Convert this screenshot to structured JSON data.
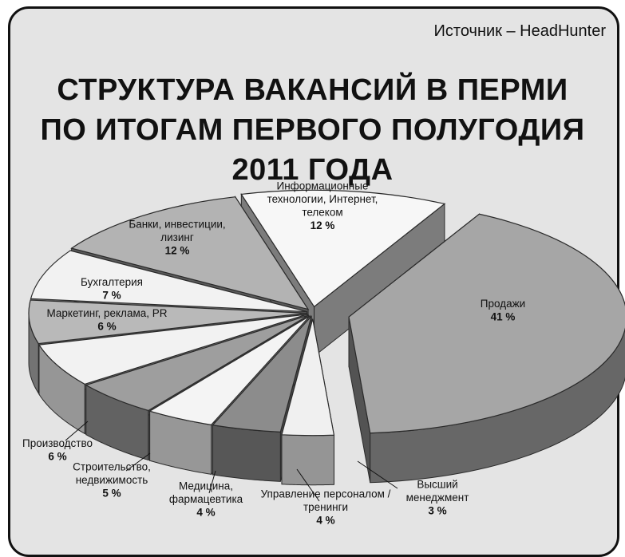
{
  "source": "Источник – HeadHunter",
  "title_lines": [
    "СТРУКТУРА ВАКАНСИЙ В ПЕРМИ",
    "ПО ИТОГАМ ПЕРВОГО ПОЛУГОДИЯ",
    "2011 ГОДА"
  ],
  "chart_data": {
    "type": "pie",
    "title": "СТРУКТУРА ВАКАНСИЙ В ПЕРМИ ПО ИТОГАМ ПЕРВОГО ПОЛУГОДИЯ 2011 ГОДА",
    "unit": "%",
    "slices": [
      {
        "name": "Продажи",
        "label_lines": [
          "Продажи"
        ],
        "value": 41,
        "value_label": "41 %",
        "color": "#a6a6a6"
      },
      {
        "name": "Высший менеджмент",
        "label_lines": [
          "Высший",
          "менеджмент"
        ],
        "value": 3,
        "value_label": "3 %",
        "color": "#f0f0f0"
      },
      {
        "name": "Управление персоналом / тренинги",
        "label_lines": [
          "Управление персоналом /",
          "тренинги"
        ],
        "value": 4,
        "value_label": "4 %",
        "color": "#8c8c8c"
      },
      {
        "name": "Медицина, фармацевтика",
        "label_lines": [
          "Медицина,",
          "фармацевтика"
        ],
        "value": 4,
        "value_label": "4 %",
        "color": "#f4f4f4"
      },
      {
        "name": "Строительство, недвижимость",
        "label_lines": [
          "Строительство,",
          "недвижимость"
        ],
        "value": 5,
        "value_label": "5 %",
        "color": "#9e9e9e"
      },
      {
        "name": "Производство",
        "label_lines": [
          "Производство"
        ],
        "value": 6,
        "value_label": "6 %",
        "color": "#f2f2f2"
      },
      {
        "name": "Маркетинг, реклама, PR",
        "label_lines": [
          "Маркетинг, реклама, PR"
        ],
        "value": 6,
        "value_label": "6 %",
        "color": "#b9b9b9"
      },
      {
        "name": "Бухгалтерия",
        "label_lines": [
          "Бухгалтерия"
        ],
        "value": 7,
        "value_label": "7 %",
        "color": "#f2f2f2"
      },
      {
        "name": "Банки, инвестиции, лизинг",
        "label_lines": [
          "Банки, инвестиции,",
          "лизинг"
        ],
        "value": 12,
        "value_label": "12 %",
        "color": "#b3b3b3"
      },
      {
        "name": "Информационные технологии, Интернет, телеком",
        "label_lines": [
          "Информационные",
          "технологии, Интернет,",
          "телеком"
        ],
        "value": 12,
        "value_label": "12 %",
        "color": "#f7f7f7"
      }
    ]
  }
}
